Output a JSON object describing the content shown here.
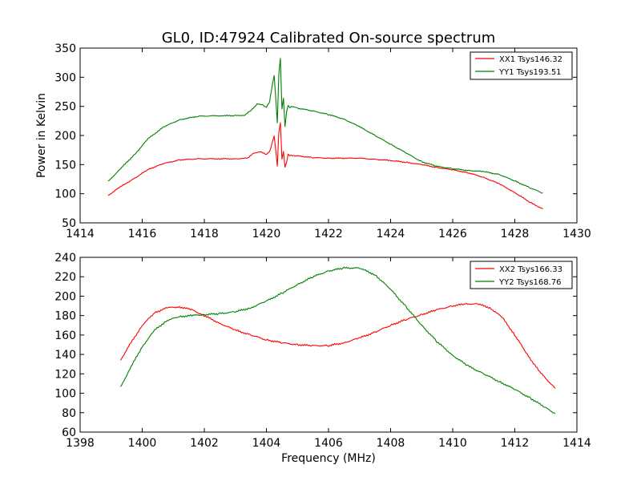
{
  "colors": {
    "xx": "#ff0000",
    "yy": "#008000"
  },
  "chart_data": [
    {
      "type": "line",
      "title": "GL0, ID:47924 Calibrated On-source spectrum",
      "xlabel": "",
      "ylabel": "Power in Kelvin",
      "xlim": [
        1414,
        1430
      ],
      "ylim": [
        50,
        350
      ],
      "xticks": [
        "1414",
        "1416",
        "1418",
        "1420",
        "1422",
        "1424",
        "1426",
        "1428",
        "1430"
      ],
      "yticks": [
        "50",
        "100",
        "150",
        "200",
        "250",
        "300",
        "350"
      ],
      "legend": "top-right",
      "series": [
        {
          "name": "XX1 Tsys146.32",
          "color": "#ff0000",
          "x": [
            1414.9,
            1415.3,
            1415.8,
            1416.2,
            1416.7,
            1417.2,
            1417.8,
            1418.5,
            1419.0,
            1419.4,
            1419.6,
            1419.8,
            1420.0,
            1420.1,
            1420.2,
            1420.25,
            1420.3,
            1420.35,
            1420.4,
            1420.45,
            1420.5,
            1420.55,
            1420.6,
            1420.65,
            1420.7,
            1420.75,
            1420.8,
            1421.0,
            1421.5,
            1422.0,
            1423.0,
            1424.0,
            1424.5,
            1425.0,
            1425.5,
            1426.0,
            1426.5,
            1427.0,
            1427.5,
            1428.0,
            1428.5,
            1428.9
          ],
          "y": [
            97,
            112,
            128,
            142,
            152,
            158,
            160,
            160,
            160,
            161,
            170,
            172,
            168,
            172,
            190,
            200,
            175,
            147,
            205,
            222,
            160,
            172,
            145,
            155,
            168,
            165,
            166,
            165,
            162,
            161,
            161,
            157,
            154,
            150,
            145,
            141,
            136,
            128,
            117,
            102,
            85,
            74
          ]
        },
        {
          "name": "YY1 Tsys193.51",
          "color": "#008000",
          "x": [
            1414.9,
            1415.3,
            1415.8,
            1416.2,
            1416.7,
            1417.2,
            1417.8,
            1418.5,
            1419.0,
            1419.3,
            1419.5,
            1419.7,
            1419.9,
            1420.0,
            1420.1,
            1420.2,
            1420.25,
            1420.3,
            1420.35,
            1420.4,
            1420.45,
            1420.5,
            1420.55,
            1420.6,
            1420.65,
            1420.7,
            1420.75,
            1420.8,
            1421.0,
            1421.5,
            1422.0,
            1422.5,
            1423.0,
            1423.5,
            1424.0,
            1424.5,
            1425.0,
            1425.5,
            1426.0,
            1426.5,
            1427.0,
            1427.5,
            1428.0,
            1428.5,
            1428.9
          ],
          "y": [
            121,
            143,
            170,
            195,
            215,
            227,
            233,
            234,
            234,
            235,
            243,
            254,
            252,
            248,
            258,
            290,
            302,
            265,
            222,
            305,
            332,
            245,
            265,
            215,
            240,
            252,
            248,
            250,
            247,
            242,
            236,
            228,
            215,
            200,
            185,
            170,
            155,
            147,
            143,
            140,
            138,
            133,
            122,
            110,
            101
          ]
        }
      ]
    },
    {
      "type": "line",
      "title": "",
      "xlabel": "Frequency (MHz)",
      "ylabel": "",
      "xlim": [
        1398,
        1414
      ],
      "ylim": [
        60,
        240
      ],
      "xticks": [
        "1398",
        "1400",
        "1402",
        "1404",
        "1406",
        "1408",
        "1410",
        "1412",
        "1414"
      ],
      "yticks": [
        "60",
        "80",
        "100",
        "120",
        "140",
        "160",
        "180",
        "200",
        "220",
        "240"
      ],
      "legend": "top-right",
      "series": [
        {
          "name": "XX2 Tsys166.33",
          "color": "#ff0000",
          "x": [
            1399.3,
            1399.6,
            1400.0,
            1400.4,
            1400.8,
            1401.2,
            1401.6,
            1402.0,
            1402.5,
            1403.0,
            1403.5,
            1404.0,
            1404.5,
            1405.0,
            1405.5,
            1406.0,
            1406.5,
            1407.0,
            1407.5,
            1408.0,
            1408.5,
            1409.0,
            1409.5,
            1410.0,
            1410.4,
            1410.8,
            1411.2,
            1411.6,
            1412.0,
            1412.4,
            1412.8,
            1413.3
          ],
          "y": [
            134,
            150,
            170,
            183,
            188,
            189,
            186,
            180,
            172,
            165,
            160,
            155,
            152,
            150,
            149,
            149,
            152,
            157,
            163,
            170,
            176,
            181,
            186,
            190,
            192,
            192,
            188,
            178,
            160,
            140,
            122,
            105
          ]
        },
        {
          "name": "YY2 Tsys168.76",
          "color": "#008000",
          "x": [
            1399.3,
            1399.6,
            1400.0,
            1400.4,
            1400.8,
            1401.2,
            1401.6,
            1402.0,
            1402.5,
            1403.0,
            1403.5,
            1404.0,
            1404.5,
            1405.0,
            1405.5,
            1406.0,
            1406.5,
            1407.0,
            1407.5,
            1408.0,
            1408.5,
            1409.0,
            1409.5,
            1410.0,
            1410.5,
            1411.0,
            1411.5,
            1412.0,
            1412.5,
            1413.0,
            1413.3
          ],
          "y": [
            106,
            125,
            148,
            165,
            175,
            179,
            180,
            181,
            182,
            184,
            188,
            195,
            203,
            212,
            220,
            226,
            229,
            229,
            222,
            207,
            189,
            170,
            153,
            139,
            128,
            120,
            112,
            104,
            95,
            85,
            79
          ]
        }
      ]
    }
  ]
}
